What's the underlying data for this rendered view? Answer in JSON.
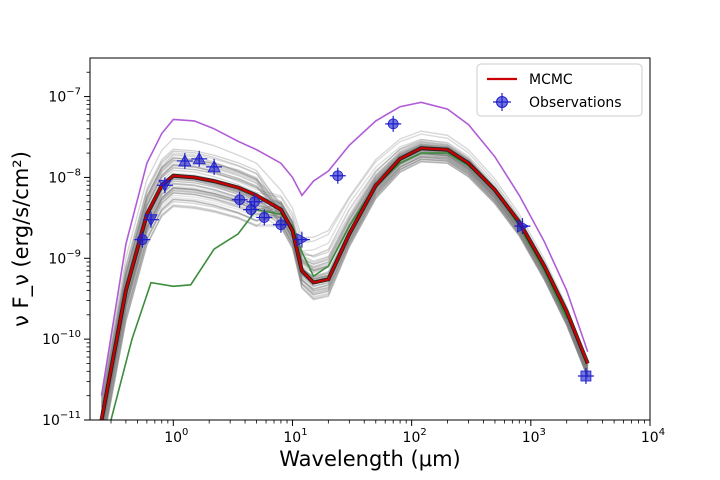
{
  "chart_data": {
    "type": "line",
    "xscale": "log",
    "yscale": "log",
    "xlim": [
      0.2,
      10000
    ],
    "ylim": [
      1e-11,
      3e-07
    ],
    "xlabel": "Wavelength (μm)",
    "ylabel": "ν F_ν (erg/s/cm²)",
    "xticks": [
      {
        "value": 1,
        "base": "10",
        "exp": "0"
      },
      {
        "value": 10,
        "base": "10",
        "exp": "1"
      },
      {
        "value": 100,
        "base": "10",
        "exp": "2"
      },
      {
        "value": 1000,
        "base": "10",
        "exp": "3"
      },
      {
        "value": 10000,
        "base": "10",
        "exp": "4"
      }
    ],
    "yticks": [
      {
        "value": 1e-11,
        "base": "10",
        "exp": "−11"
      },
      {
        "value": 1e-10,
        "base": "10",
        "exp": "−10"
      },
      {
        "value": 1e-09,
        "base": "10",
        "exp": "−9"
      },
      {
        "value": 1e-08,
        "base": "10",
        "exp": "−8"
      },
      {
        "value": 1e-07,
        "base": "10",
        "exp": "−7"
      }
    ],
    "legend": {
      "placement": "top-right",
      "entries": [
        {
          "label": "MCMC",
          "kind": "line",
          "color": "#cc0000"
        },
        {
          "label": "Observations",
          "kind": "marker",
          "color": "#1f1fcc"
        }
      ]
    },
    "colors": {
      "mcmc": "#cc0000",
      "upper": "#b05cd6",
      "lower": "#3c8c3c",
      "ensemble": "#808080",
      "observations": "#1f1fcc"
    },
    "series": [
      {
        "name": "MCMC",
        "role": "best",
        "x": [
          0.25,
          0.4,
          0.6,
          0.8,
          1.0,
          1.5,
          2.2,
          3.5,
          5,
          8,
          10,
          12,
          15,
          20,
          30,
          50,
          80,
          120,
          200,
          300,
          500,
          800,
          1300,
          2000,
          3000
        ],
        "y": [
          1e-11,
          4e-10,
          3.5e-09,
          8e-09,
          1.05e-08,
          1e-08,
          9e-09,
          7.5e-09,
          6e-09,
          4e-09,
          2.2e-09,
          7e-10,
          5e-10,
          5.5e-10,
          2e-09,
          8e-09,
          1.7e-08,
          2.3e-08,
          2.2e-08,
          1.5e-08,
          7e-09,
          2.8e-09,
          8e-10,
          2.2e-10,
          5e-11
        ]
      },
      {
        "role": "upper",
        "x": [
          0.25,
          0.4,
          0.6,
          0.8,
          1.0,
          1.5,
          2.2,
          3.5,
          5,
          8,
          10,
          12,
          15,
          20,
          30,
          50,
          80,
          120,
          200,
          300,
          500,
          800,
          1300,
          2000,
          3000
        ],
        "y": [
          2e-11,
          1.5e-09,
          1.5e-08,
          3.5e-08,
          5.2e-08,
          5e-08,
          4e-08,
          2.8e-08,
          2.2e-08,
          1.5e-08,
          1e-08,
          6e-09,
          9e-09,
          1.2e-08,
          2.5e-08,
          5e-08,
          7.5e-08,
          8.5e-08,
          7e-08,
          4.5e-08,
          1.8e-08,
          6e-09,
          1.6e-09,
          4e-10,
          7e-11
        ]
      },
      {
        "role": "lower",
        "x": [
          0.3,
          0.45,
          0.65,
          1.0,
          1.4,
          2.2,
          3.5,
          5,
          8,
          10,
          12,
          15,
          20,
          30,
          50,
          80,
          120,
          200,
          300,
          500,
          800,
          1300,
          2000
        ],
        "y": [
          1e-11,
          1e-10,
          5e-10,
          4.5e-10,
          4.7e-10,
          1.3e-09,
          2e-09,
          4e-09,
          3.5e-09,
          2.5e-09,
          1.2e-09,
          6e-10,
          8e-10,
          2.5e-09,
          8e-09,
          1.5e-08,
          2e-08,
          2e-08,
          1.4e-08,
          7e-09,
          2.5e-09,
          7e-10,
          1.8e-10
        ]
      }
    ],
    "observations": [
      {
        "x": 0.55,
        "y": 1.7e-09,
        "marker": "circle"
      },
      {
        "x": 0.65,
        "y": 3e-09,
        "marker": "triangle-down"
      },
      {
        "x": 0.85,
        "y": 8e-09,
        "marker": "triangle-down"
      },
      {
        "x": 1.25,
        "y": 1.6e-08,
        "marker": "triangle-up"
      },
      {
        "x": 1.65,
        "y": 1.7e-08,
        "marker": "triangle-up"
      },
      {
        "x": 2.2,
        "y": 1.35e-08,
        "marker": "triangle-up"
      },
      {
        "x": 3.6,
        "y": 5.3e-09,
        "marker": "circle"
      },
      {
        "x": 4.5,
        "y": 4e-09,
        "marker": "circle"
      },
      {
        "x": 4.8,
        "y": 5e-09,
        "marker": "circle"
      },
      {
        "x": 5.8,
        "y": 3.2e-09,
        "marker": "circle"
      },
      {
        "x": 8.0,
        "y": 2.6e-09,
        "marker": "circle"
      },
      {
        "x": 12,
        "y": 1.7e-09,
        "marker": "triangle-right"
      },
      {
        "x": 24,
        "y": 1.05e-08,
        "marker": "circle"
      },
      {
        "x": 70,
        "y": 4.6e-08,
        "marker": "circle"
      },
      {
        "x": 850,
        "y": 2.5e-09,
        "marker": "triangle-right"
      },
      {
        "x": 2900,
        "y": 3.5e-11,
        "marker": "square"
      }
    ]
  }
}
